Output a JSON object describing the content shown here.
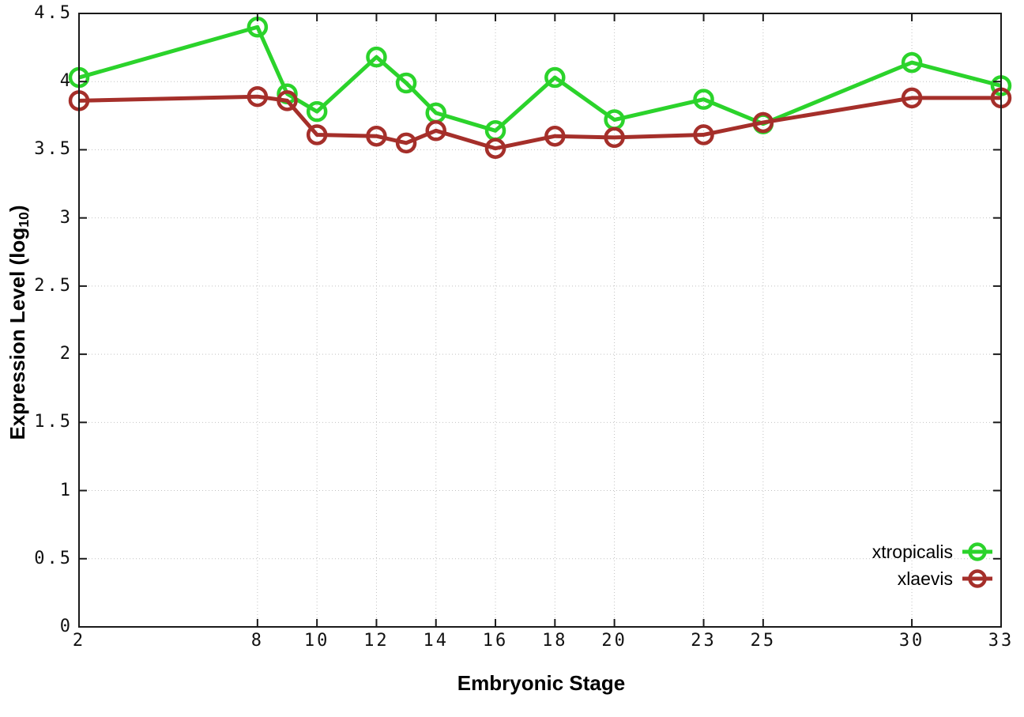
{
  "chart_data": {
    "type": "line",
    "title": "",
    "xlabel": "Embryonic Stage",
    "ylabel_main": "Expression Level (log",
    "ylabel_sub": "10",
    "ylabel_end": ")",
    "xlim": [
      2,
      33
    ],
    "ylim": [
      0,
      4.5
    ],
    "grid": true,
    "grid_style": "dotted",
    "legend_position": "bottom-right",
    "categories": [
      2,
      8,
      9,
      10,
      12,
      13,
      14,
      16,
      18,
      20,
      23,
      25,
      30,
      33
    ],
    "xticks": {
      "values": [
        2,
        8,
        10,
        12,
        14,
        16,
        18,
        20,
        23,
        25,
        30,
        33
      ],
      "labels": [
        "2",
        "8",
        "10",
        "12",
        "14",
        "16",
        "18",
        "20",
        "23",
        "25",
        "30",
        "33"
      ]
    },
    "yticks": {
      "values": [
        0,
        0.5,
        1,
        1.5,
        2,
        2.5,
        3,
        3.5,
        4,
        4.5
      ],
      "labels": [
        "0",
        "0.5",
        "1",
        "1.5",
        "2",
        "2.5",
        "3",
        "3.5",
        "4",
        "4.5"
      ]
    },
    "series": [
      {
        "name": "xtropicalis",
        "color": "#2bd32b",
        "marker": "open-circle",
        "values": [
          4.03,
          4.4,
          3.91,
          3.78,
          4.18,
          3.99,
          3.77,
          3.64,
          4.03,
          3.72,
          3.87,
          3.69,
          4.14,
          3.97
        ]
      },
      {
        "name": "xlaevis",
        "color": "#a52f2a",
        "marker": "open-circle",
        "values": [
          3.86,
          3.89,
          3.86,
          3.61,
          3.6,
          3.55,
          3.64,
          3.51,
          3.6,
          3.59,
          3.61,
          3.7,
          3.88,
          3.88
        ]
      }
    ],
    "colors": {
      "border": "#1a1a1a",
      "grid": "#c2c2c2",
      "tick_text": "#111111"
    }
  }
}
